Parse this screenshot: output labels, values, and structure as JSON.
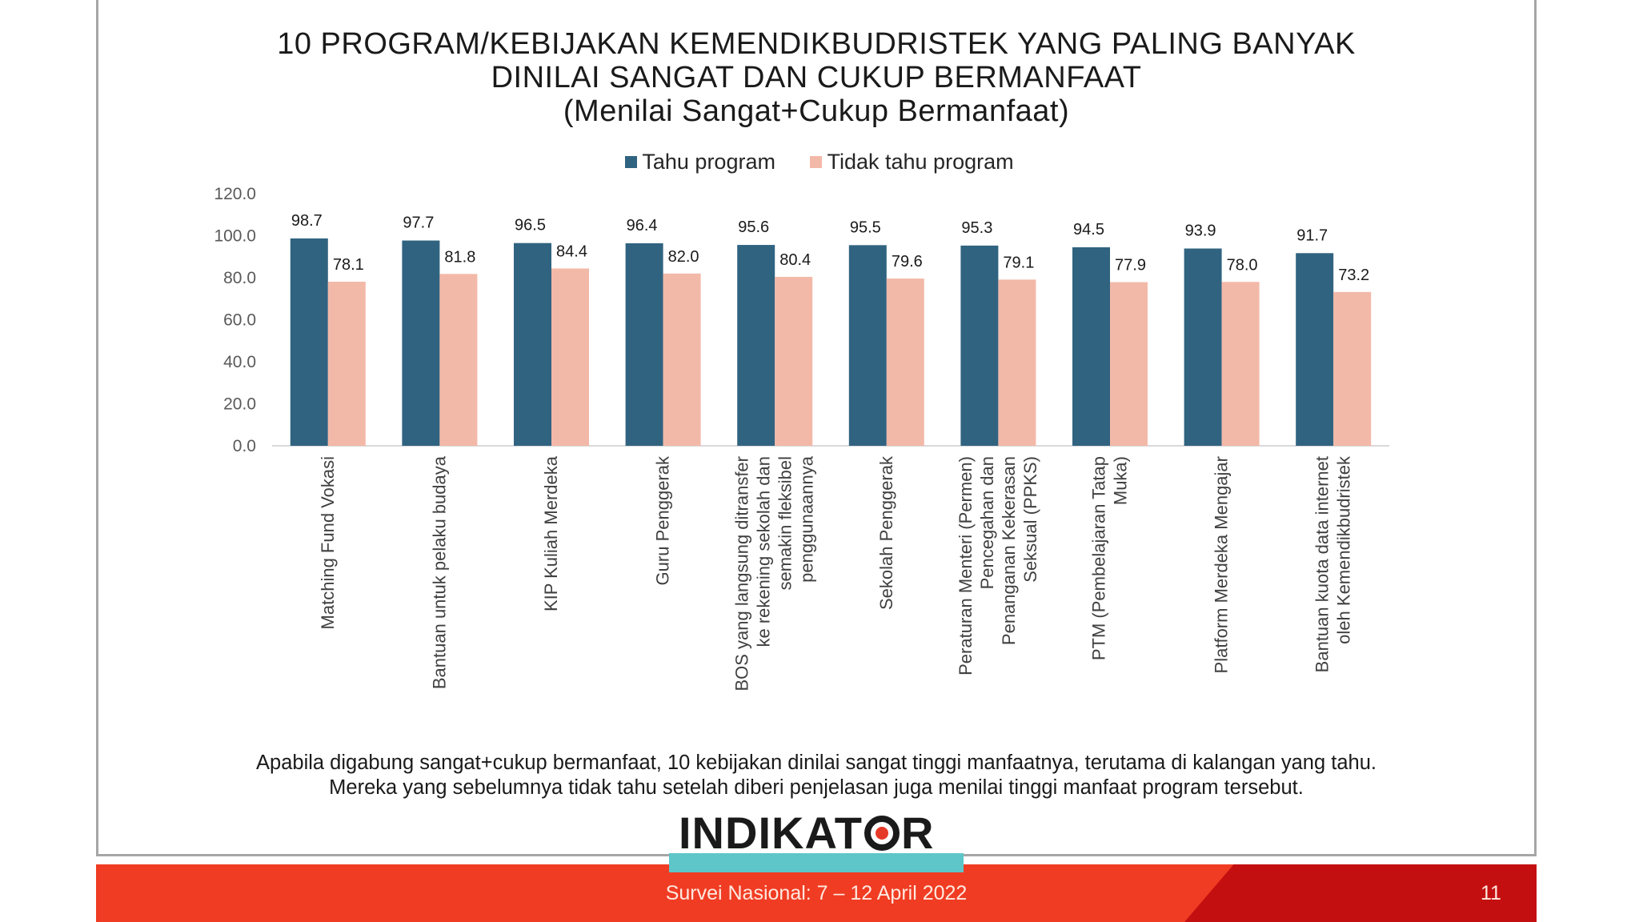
{
  "title_lines": [
    "10 PROGRAM/KEBIJAKAN KEMENDIKBUDRISTEK YANG PALING BANYAK",
    "DINILAI SANGAT DAN CUKUP BERMANFAAT",
    "(Menilai Sangat+Cukup Bermanfaat)"
  ],
  "note_lines": [
    "Apabila digabung sangat+cukup bermanfaat, 10 kebijakan dinilai sangat tinggi manfaatnya, terutama di kalangan yang tahu.",
    "Mereka yang sebelumnya tidak tahu setelah diberi penjelasan juga menilai tinggi manfaat program tersebut."
  ],
  "logo": "INDIKATOR",
  "footer": {
    "survey": "Survei Nasional: 7 – 12 April 2022",
    "page_number": "11"
  },
  "colors": {
    "series_1": "#306380",
    "series_2": "#f3b9a8",
    "footer_red": "#f03c23",
    "footer_dark": "#c40f10",
    "accent_teal": "#5ec6c8"
  },
  "chart_data": {
    "type": "bar",
    "legend_position": "top-center",
    "grid": false,
    "ylim": [
      0,
      120
    ],
    "yticks": [
      "0.0",
      "20.0",
      "40.0",
      "60.0",
      "80.0",
      "100.0",
      "120.0"
    ],
    "categories": [
      [
        "Matching Fund Vokasi"
      ],
      [
        "Bantuan untuk pelaku budaya"
      ],
      [
        "KIP Kuliah Merdeka"
      ],
      [
        "Guru Penggerak"
      ],
      [
        "BOS yang langsung ditransfer",
        "ke rekening sekolah dan",
        "semakin fleksibel",
        "penggunaannya"
      ],
      [
        "Sekolah Penggerak"
      ],
      [
        "Peraturan Menteri (Permen)",
        "Pencegahan dan",
        "Penanganan Kekerasan",
        "Seksual (PPKS)"
      ],
      [
        "PTM  (Pembelajaran Tatap",
        "Muka)"
      ],
      [
        "Platform Merdeka Mengajar"
      ],
      [
        "Bantuan kuota data internet",
        "oleh Kemendikbudristek"
      ]
    ],
    "series": [
      {
        "name": "Tahu program",
        "color": "#306380",
        "values": [
          98.7,
          97.7,
          96.5,
          96.4,
          95.6,
          95.5,
          95.3,
          94.5,
          93.9,
          91.7
        ],
        "labels": [
          "98.7",
          "97.7",
          "96.5",
          "96.4",
          "95.6",
          "95.5",
          "95.3",
          "94.5",
          "93.9",
          "91.7"
        ]
      },
      {
        "name": "Tidak tahu program",
        "color": "#f3b9a8",
        "values": [
          78.1,
          81.8,
          84.4,
          82.0,
          80.4,
          79.6,
          79.1,
          77.9,
          78.0,
          73.2
        ],
        "labels": [
          "78.1",
          "81.8",
          "84.4",
          "82.0",
          "80.4",
          "79.6",
          "79.1",
          "77.9",
          "78.0",
          "73.2"
        ]
      }
    ]
  }
}
